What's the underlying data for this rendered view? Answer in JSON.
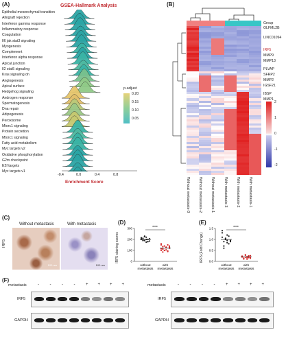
{
  "panels": {
    "a": "(A)",
    "b": "(B)",
    "c": "(C)",
    "d": "(D)",
    "e": "(E)",
    "f": "(F)"
  },
  "panel_a": {
    "title": "GSEA-Hallmark Analysis",
    "xlabel": "Enrichment Score",
    "x_ticks": [
      "-0.4",
      "0.0",
      "0.4",
      "0.8"
    ],
    "pathways": [
      "Epithelial mesenchymal transition",
      "Allograft rejection",
      "Interferon gamma response",
      "Inflammatory response",
      "Coagulation",
      "Il6 jak stat3 signaling",
      "Myogenesis",
      "Complement",
      "Interferon alpha response",
      "Apical junction",
      "Il2 stat5 signaling",
      "Kras signaling dn",
      "Angiogenesis",
      "Apical surface",
      "Hedgehog signaling",
      "Androgen response",
      "Spermatogenesis",
      "Dna repair",
      "Adipogenesis",
      "Peroxisome",
      "Mtorc1 signaling",
      "Protein secretion",
      "Mtorc1 signaling",
      "Fatty acid metabolism",
      "Myc targets v2",
      "Oxidative phosphorylation",
      "G2m checkpoint",
      "E2f targets",
      "Myc targets v1"
    ],
    "legend_title": "p.adjust",
    "legend_ticks": [
      "0.20",
      "0.15",
      "0.10",
      "0.05"
    ]
  },
  "panel_b": {
    "group_label": "Group",
    "gene_labels": [
      "OLFML2B",
      "LINC01094",
      "IRF5",
      "MMP9",
      "MMP13",
      "PLVAP",
      "SFRP2",
      "MMP2",
      "IGSF21",
      "IBSP",
      "MMP1"
    ],
    "highlight_gene": "IRF5",
    "samples": [
      "Without metastasis-3",
      "Without metastasis-2",
      "Without metastasis-1",
      "With metastasis-3",
      "With metastasis-2",
      "With metastasis-1"
    ],
    "scale_ticks": [
      "2",
      "1",
      "0",
      "-1",
      "-2"
    ]
  },
  "panel_c": {
    "left_title": "Without metastasis",
    "right_title": "With metastasis",
    "side_label": "IRF5",
    "scale_left": "100 um",
    "scale_right": "100 um"
  },
  "panel_d": {
    "ylabel": "IRF5 staining scores",
    "y_ticks": [
      "300",
      "200",
      "100",
      "0"
    ],
    "groups": [
      "without\nmetastasis",
      "with\nmetastasis"
    ],
    "significance": "****"
  },
  "panel_e": {
    "ylabel": "IRF5 (Fold Change)",
    "y_ticks": [
      "1.5",
      "1.0",
      "0.5",
      "0.0"
    ],
    "groups": [
      "without\nmetastasis",
      "with\nmetastasis"
    ],
    "significance": "****"
  },
  "panel_f": {
    "row_label": "metastasis",
    "left_signs": [
      "-",
      "-",
      "-",
      "-",
      "+",
      "+",
      "+",
      "+"
    ],
    "right_signs": [
      "-",
      "-",
      "-",
      "-",
      "+",
      "+",
      "+",
      "+"
    ],
    "proteins": [
      "IRF5",
      "GAPDH"
    ]
  },
  "colors": {
    "accent_red": "#c0282d",
    "heat_high": "#e02020",
    "heat_low": "#3a3fb0",
    "group_without": "#f08080",
    "group_with": "#38c6c6"
  }
}
